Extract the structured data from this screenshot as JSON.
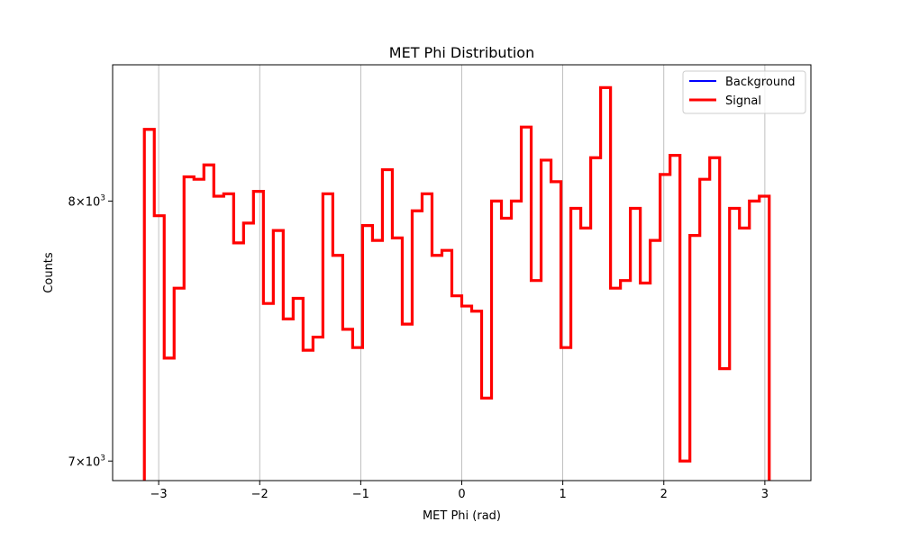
{
  "chart_data": {
    "type": "histogram",
    "title": "MET Phi Distribution",
    "xlabel": "MET Phi (rad)",
    "ylabel": "Counts",
    "xlim": [
      -3.4558,
      3.4558
    ],
    "ylim": [
      6930,
      8580
    ],
    "yscale": "log",
    "grid": "x-only",
    "legend_position": "upper right",
    "x_ticks": [
      {
        "value": -3,
        "label": "−3"
      },
      {
        "value": -2,
        "label": "−2"
      },
      {
        "value": -1,
        "label": "−1"
      },
      {
        "value": 0,
        "label": "0"
      },
      {
        "value": 1,
        "label": "1"
      },
      {
        "value": 2,
        "label": "2"
      },
      {
        "value": 3,
        "label": "3"
      }
    ],
    "y_ticks": [
      {
        "value": 7000,
        "mantissa": "7",
        "base": "10",
        "exp": "3"
      },
      {
        "value": 8000,
        "mantissa": "8",
        "base": "10",
        "exp": "3"
      }
    ],
    "bin_edges_range": [
      -3.14159,
      3.14159
    ],
    "n_bins": 64,
    "series": [
      {
        "name": "Background",
        "color": "#0000ff",
        "values": []
      },
      {
        "name": "Signal",
        "color": "#ff0000",
        "values": [
          8300,
          7940,
          7380,
          7650,
          8100,
          8090,
          8150,
          8020,
          8030,
          7830,
          7910,
          8040,
          7590,
          7880,
          7530,
          7610,
          7410,
          7460,
          8030,
          7780,
          7490,
          7420,
          7900,
          7840,
          8130,
          7850,
          7510,
          7960,
          8030,
          7780,
          7800,
          7620,
          7580,
          7560,
          7230,
          8000,
          7930,
          8000,
          8310,
          7680,
          8170,
          8080,
          7420,
          7970,
          7890,
          8180,
          8480,
          7650,
          7680,
          7970,
          7670,
          7840,
          8110,
          8190,
          7000,
          7860,
          8090,
          8180,
          7340,
          7970,
          7890,
          8000,
          8020,
          6880
        ]
      }
    ]
  }
}
